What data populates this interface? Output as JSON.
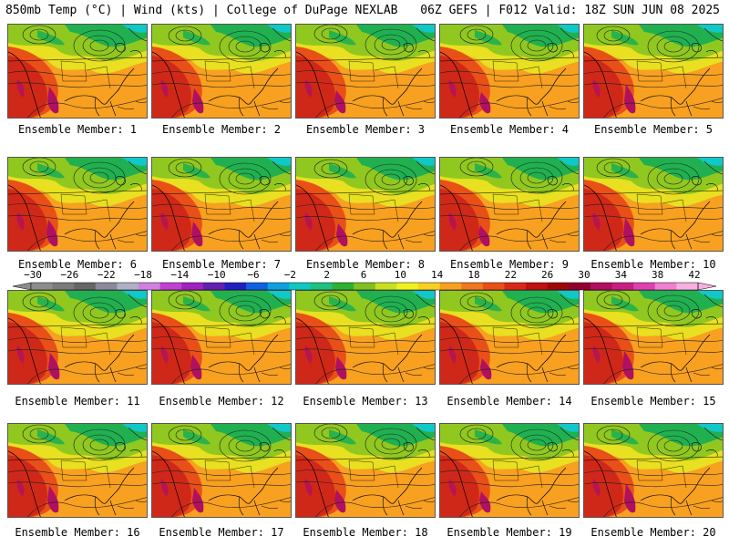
{
  "header": {
    "left": "850mb Temp (°C) | Wind (kts) | College of DuPage NEXLAB",
    "right": "06Z GEFS | F012 Valid: 18Z SUN JUN 08 2025"
  },
  "members": [
    {
      "label": "Ensemble Member: 1"
    },
    {
      "label": "Ensemble Member: 2"
    },
    {
      "label": "Ensemble Member: 3"
    },
    {
      "label": "Ensemble Member: 4"
    },
    {
      "label": "Ensemble Member: 5"
    },
    {
      "label": "Ensemble Member: 6"
    },
    {
      "label": "Ensemble Member: 7"
    },
    {
      "label": "Ensemble Member: 8"
    },
    {
      "label": "Ensemble Member: 9"
    },
    {
      "label": "Ensemble Member: 10"
    },
    {
      "label": "Ensemble Member: 11"
    },
    {
      "label": "Ensemble Member: 12"
    },
    {
      "label": "Ensemble Member: 13"
    },
    {
      "label": "Ensemble Member: 14"
    },
    {
      "label": "Ensemble Member: 15"
    },
    {
      "label": "Ensemble Member: 16"
    },
    {
      "label": "Ensemble Member: 17"
    },
    {
      "label": "Ensemble Member: 18"
    },
    {
      "label": "Ensemble Member: 19"
    },
    {
      "label": "Ensemble Member: 20"
    }
  ],
  "colorbar": {
    "tick_labels": [
      "−30",
      "−26",
      "−22",
      "−18",
      "−14",
      "−10",
      "−6",
      "−2",
      "2",
      "6",
      "10",
      "14",
      "18",
      "22",
      "26",
      "30",
      "34",
      "38",
      "42"
    ],
    "colors": [
      "#8c8c8c",
      "#7a7a7a",
      "#666666",
      "#8a8a9a",
      "#b0b0c8",
      "#d080e0",
      "#c040d0",
      "#a020c0",
      "#6020b0",
      "#2020c0",
      "#1060e0",
      "#10a0e0",
      "#10c8c0",
      "#20c080",
      "#30b030",
      "#80c020",
      "#c8e020",
      "#f0f020",
      "#f8d020",
      "#f8a020",
      "#f07820",
      "#e85018",
      "#d82818",
      "#c01010",
      "#a00808",
      "#900030",
      "#b01060",
      "#c82080",
      "#e040b0",
      "#f080d0",
      "#f8b0e0"
    ]
  },
  "map_colors": {
    "cold": "#10c8c8",
    "cool": "#20b050",
    "mild": "#90c820",
    "warmish": "#e8e020",
    "warm": "#f8a020",
    "hot": "#e85018",
    "hotter": "#d02818",
    "hottest": "#b01060",
    "coast": "#000000",
    "isobar": "#202020"
  }
}
